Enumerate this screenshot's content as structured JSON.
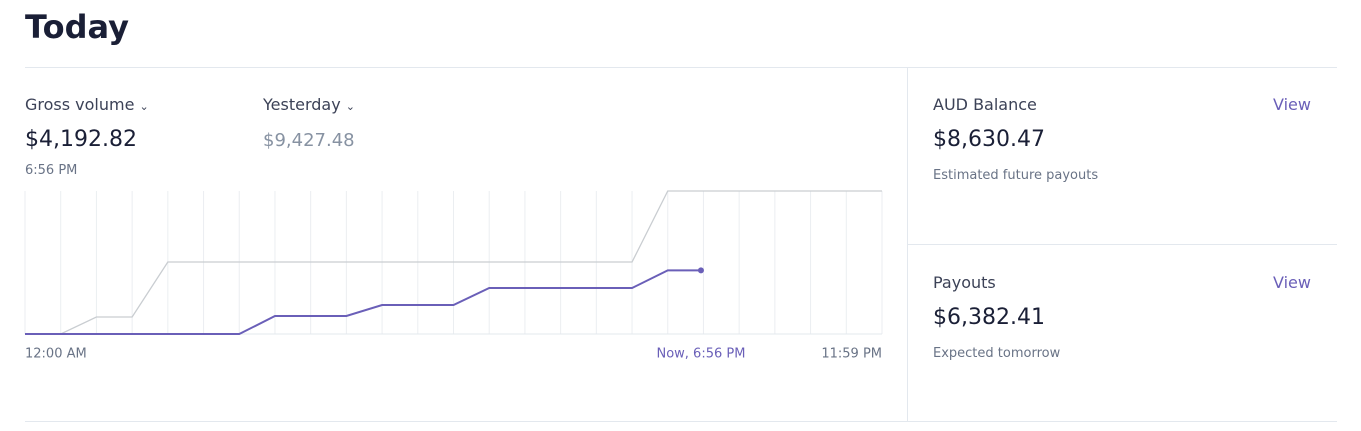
{
  "header": {
    "title": "Today"
  },
  "gross": {
    "label": "Gross volume",
    "amount": "$4,192.82",
    "time": "6:56 PM"
  },
  "compare": {
    "label": "Yesterday",
    "amount": "$9,427.48"
  },
  "chart": {
    "type": "line",
    "xlim": [
      0,
      24
    ],
    "ylim": [
      0,
      9427.48
    ],
    "xgrid": [
      0,
      1,
      2,
      3,
      4,
      5,
      6,
      7,
      8,
      9,
      10,
      11,
      12,
      13,
      14,
      15,
      16,
      17,
      18,
      19,
      20,
      21,
      22,
      23,
      24
    ],
    "xticks": [
      {
        "value": 0,
        "label": "12:00 AM"
      },
      {
        "value": 18.93,
        "label": "Now, 6:56 PM"
      },
      {
        "value": 24,
        "label": "11:59 PM"
      }
    ],
    "series": [
      {
        "color": "#c9cdd1",
        "x": [
          0,
          1,
          2,
          3,
          4,
          5,
          6,
          7,
          8,
          9,
          10,
          11,
          12,
          13,
          14,
          15,
          16,
          17,
          18,
          19,
          20,
          21,
          22,
          23,
          24
        ],
        "values": [
          0,
          0,
          1120,
          1120,
          4745,
          4745,
          4745,
          4745,
          4745,
          4745,
          4745,
          4745,
          4745,
          4745,
          4745,
          4745,
          4745,
          4745,
          9427.48,
          9427.48,
          9427.48,
          9427.48,
          9427.48,
          9427.48,
          9427.48
        ]
      },
      {
        "color": "#6a5fb8",
        "x": [
          0,
          1,
          2,
          3,
          4,
          5,
          6,
          7,
          8,
          9,
          10,
          11,
          12,
          13,
          14,
          15,
          16,
          17,
          18,
          18.93
        ],
        "values": [
          0,
          0,
          0,
          0,
          0,
          0,
          0,
          1186,
          1186,
          1186,
          1911,
          1911,
          1911,
          3031,
          3031,
          3031,
          3031,
          3031,
          4192.82,
          4192.82
        ]
      }
    ]
  },
  "balance": {
    "title": "AUD Balance",
    "link": "View",
    "amount": "$8,630.47",
    "note": "Estimated future payouts"
  },
  "payouts": {
    "title": "Payouts",
    "link": "View",
    "amount": "$6,382.41",
    "note": "Expected tomorrow"
  }
}
